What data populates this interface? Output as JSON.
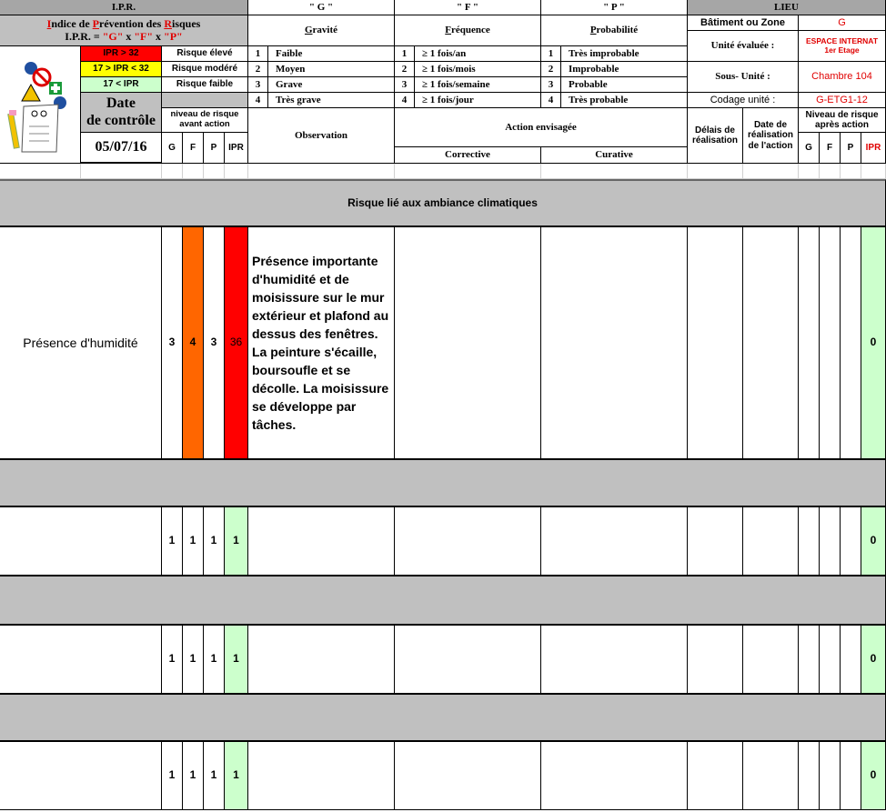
{
  "ipr": {
    "title": "I.P.R.",
    "subtitle_parts": [
      "I",
      "ndice de ",
      "P",
      "révention des ",
      "R",
      "isques"
    ],
    "formula_parts": [
      "I.P.R. = ",
      "\"G\"",
      " x ",
      "\"F\"",
      " x ",
      "\"P\""
    ],
    "levels": [
      {
        "range": "IPR > 32",
        "label": "Risque élevé",
        "color": "#ff0000"
      },
      {
        "range": "17 > IPR < 32",
        "label": "Risque modéré",
        "color": "#ffff00"
      },
      {
        "range": "17 <  IPR",
        "label": "Risque faible",
        "color": "#ccffcc"
      }
    ]
  },
  "date": {
    "label_line1": "Date",
    "label_line2": "de contrôle",
    "value": "05/07/16"
  },
  "before": {
    "title": "niveau de risque avant action",
    "cols": [
      "G",
      "F",
      "P",
      "IPR"
    ]
  },
  "gravite": {
    "code": "\" G \"",
    "title_first": "G",
    "title_rest": "ravité",
    "items": [
      [
        "1",
        "Faible"
      ],
      [
        "2",
        "Moyen"
      ],
      [
        "3",
        "Grave"
      ],
      [
        "4",
        "Très grave"
      ]
    ]
  },
  "frequence": {
    "code": "\" F \"",
    "title_first": "F",
    "title_rest": "réquence",
    "items": [
      [
        "1",
        "≥ 1 fois/an"
      ],
      [
        "2",
        "≥ 1 fois/mois"
      ],
      [
        "3",
        "≥ 1 fois/semaine"
      ],
      [
        "4",
        "≥ 1 fois/jour"
      ]
    ]
  },
  "probabilite": {
    "code": "\" P \"",
    "title_first": "P",
    "title_rest": "robabilité",
    "items": [
      [
        "1",
        "Très improbable"
      ],
      [
        "2",
        "Improbable"
      ],
      [
        "3",
        "Probable"
      ],
      [
        "4",
        "Très probable"
      ]
    ]
  },
  "lieu": {
    "title": "LIEU",
    "batiment_label": "Bâtiment ou Zone",
    "batiment_value": "G",
    "unite_label": "Unité évaluée :",
    "unite_value": "ESPACE INTERNAT 1er Etage",
    "sous_unite_label": "Sous- Unité :",
    "sous_unite_value": "Chambre 104",
    "codage_label": "Codage unité :",
    "codage_value": "G-ETG1-12"
  },
  "columns": {
    "observation": "Observation",
    "action": "Action envisagée",
    "corrective": "Corrective",
    "curative": "Curative",
    "delais": "Délais de réalisation",
    "date_realisation": "Date de réalisation de l'action",
    "after_title": "Niveau de risque après action",
    "after_cols": [
      "G",
      "F",
      "P",
      "IPR"
    ]
  },
  "section_title": "Risque lié aux ambiance climatiques",
  "rows": [
    {
      "label": "Présence d'humidité",
      "g": "3",
      "f": "4",
      "p": "3",
      "ipr": "36",
      "f_color": "#ff6600",
      "ipr_color": "#ff0000",
      "observation": "Présence importante d'humidité et de moisissure sur le mur extérieur et plafond au dessus des fenêtres. La peinture s'écaille, boursoufle et se décolle. La moisissure  se développe par tâches.",
      "ipr_after": "0"
    },
    {
      "label": "",
      "g": "1",
      "f": "1",
      "p": "1",
      "ipr": "1",
      "f_color": "#ffffff",
      "ipr_color": "#ccffcc",
      "observation": "",
      "ipr_after": "0"
    },
    {
      "label": "",
      "g": "1",
      "f": "1",
      "p": "1",
      "ipr": "1",
      "f_color": "#ffffff",
      "ipr_color": "#ccffcc",
      "observation": "",
      "ipr_after": "0"
    },
    {
      "label": "",
      "g": "1",
      "f": "1",
      "p": "1",
      "ipr": "1",
      "f_color": "#ffffff",
      "ipr_color": "#ccffcc",
      "observation": "",
      "ipr_after": "0"
    }
  ]
}
